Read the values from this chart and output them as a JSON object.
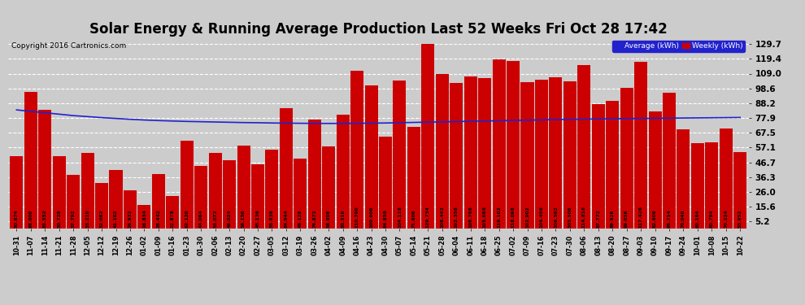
{
  "title": "Solar Energy & Running Average Production Last 52 Weeks Fri Oct 28 17:42",
  "copyright": "Copyright 2016 Cartronics.com",
  "categories": [
    "10-31",
    "11-07",
    "11-14",
    "11-21",
    "11-28",
    "12-05",
    "12-12",
    "12-19",
    "12-26",
    "01-02",
    "01-09",
    "01-16",
    "01-23",
    "01-30",
    "02-06",
    "02-13",
    "02-20",
    "02-27",
    "03-05",
    "03-12",
    "03-19",
    "03-26",
    "04-02",
    "04-09",
    "04-16",
    "04-23",
    "04-30",
    "05-07",
    "05-14",
    "05-21",
    "05-28",
    "06-04",
    "06-11",
    "06-18",
    "06-25",
    "07-02",
    "07-09",
    "07-16",
    "07-23",
    "07-30",
    "08-06",
    "08-13",
    "08-20",
    "08-27",
    "09-03",
    "09-10",
    "09-17",
    "09-24",
    "10-01",
    "10-08",
    "10-15",
    "10-22"
  ],
  "weekly_values": [
    50.874,
    96.0,
    83.552,
    50.728,
    37.792,
    53.21,
    32.062,
    41.102,
    26.932,
    16.834,
    38.442,
    22.878,
    62.12,
    44.064,
    53.072,
    48.024,
    58.15,
    45.136,
    55.636,
    84.944,
    49.128,
    76.872,
    58.008,
    80.31,
    110.79,
    100.906,
    64.858,
    104.118,
    71.606,
    129.734,
    108.442,
    102.358,
    106.766,
    105.668,
    119.102,
    118.098,
    102.902,
    104.456,
    106.592,
    103.506,
    114.816,
    87.772,
    89.926,
    99.036,
    117.426,
    82.606,
    95.714,
    70.04,
    60.164,
    60.794,
    70.224,
    53.952
  ],
  "running_avg": [
    83.5,
    82.5,
    81.5,
    80.5,
    79.5,
    78.8,
    78.1,
    77.5,
    76.9,
    76.4,
    76.0,
    75.7,
    75.4,
    75.2,
    75.0,
    74.8,
    74.6,
    74.5,
    74.3,
    74.2,
    74.1,
    74.0,
    74.0,
    74.0,
    74.1,
    74.2,
    74.3,
    74.5,
    74.7,
    74.9,
    75.1,
    75.3,
    75.5,
    75.7,
    75.9,
    76.1,
    76.3,
    76.5,
    76.7,
    76.9,
    77.0,
    77.2,
    77.3,
    77.4,
    77.5,
    77.6,
    77.7,
    77.8,
    77.9,
    78.0,
    78.1,
    78.2
  ],
  "bar_color": "#cc0000",
  "line_color": "#2222cc",
  "bg_color": "#cccccc",
  "plot_bg_color": "#cccccc",
  "ytick_labels": [
    "5.2",
    "15.6",
    "26.0",
    "36.3",
    "46.7",
    "57.1",
    "67.5",
    "77.9",
    "88.2",
    "98.6",
    "109.0",
    "119.4",
    "129.7"
  ],
  "ytick_values": [
    5.2,
    15.6,
    26.0,
    36.3,
    46.7,
    57.1,
    67.5,
    77.9,
    88.2,
    98.6,
    109.0,
    119.4,
    129.7
  ],
  "ylim": [
    0,
    135
  ],
  "legend_avg_color": "#2222cc",
  "legend_weekly_color": "#cc0000",
  "avg_label": "Average (kWh)",
  "weekly_label": "Weekly (kWh)",
  "title_fontsize": 12,
  "copyright_fontsize": 6.5
}
